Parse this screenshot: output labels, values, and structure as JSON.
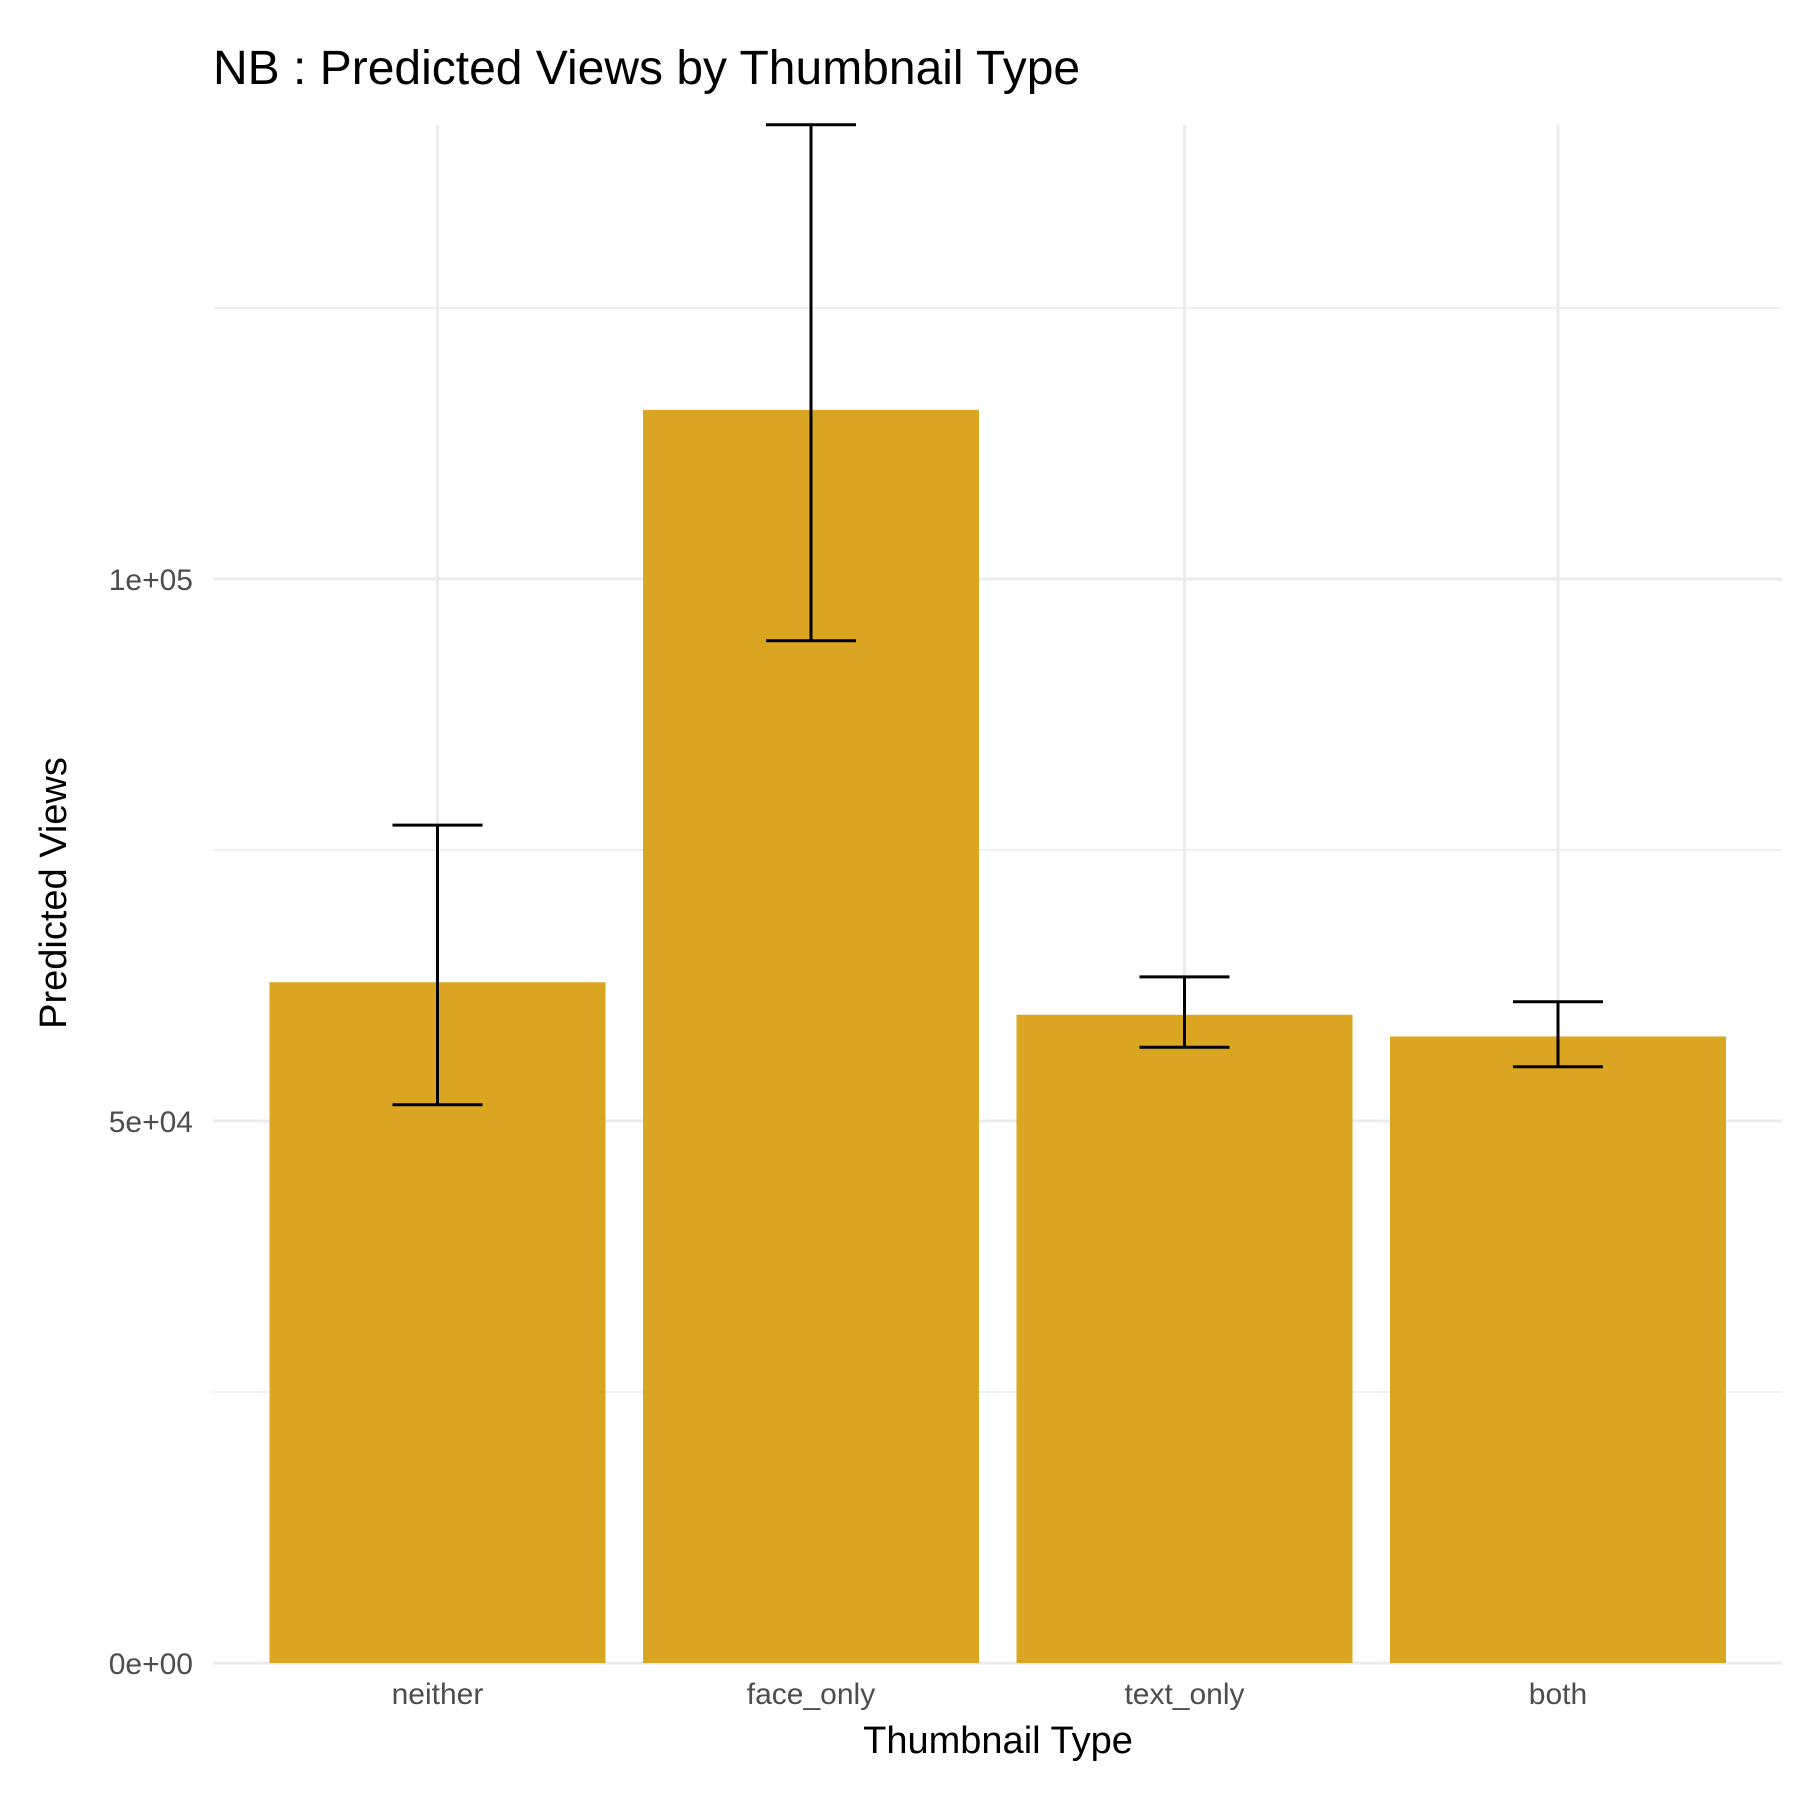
{
  "chart_data": {
    "type": "bar",
    "title": "NB : Predicted Views by Thumbnail Type",
    "xlabel": "Thumbnail Type",
    "ylabel": "Predicted Views",
    "categories": [
      "neither",
      "face_only",
      "text_only",
      "both"
    ],
    "values": [
      62800,
      115600,
      59800,
      57800
    ],
    "error_low": [
      51500,
      94300,
      56800,
      55000
    ],
    "error_high": [
      77300,
      141900,
      63300,
      61000
    ],
    "ylim": [
      0,
      141900
    ],
    "yticks": [
      0,
      50000,
      100000
    ],
    "ytick_labels": [
      "0e+00",
      "5e+04",
      "1e+05"
    ],
    "grid": true,
    "legend": "none",
    "bar_color": "#DAA520"
  }
}
